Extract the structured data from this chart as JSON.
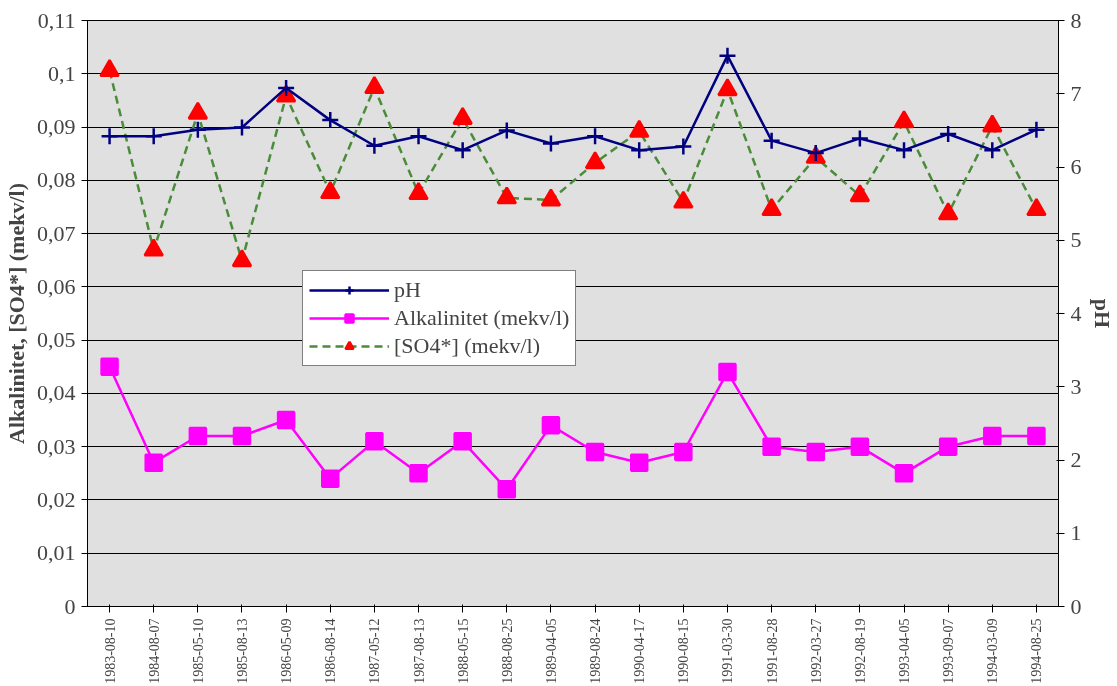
{
  "chart_data": {
    "type": "line",
    "ylabel": "Alkalinitet, [SO4*] (mekv/l)",
    "y2label": "pH",
    "categories": [
      "1983-08-10",
      "1984-08-07",
      "1985-05-10",
      "1985-08-13",
      "1986-05-09",
      "1986-08-14",
      "1987-05-12",
      "1987-08-13",
      "1988-05-15",
      "1988-08-25",
      "1989-04-05",
      "1989-08-24",
      "1990-04-17",
      "1990-08-15",
      "1991-03-30",
      "1991-08-28",
      "1992-03-27",
      "1992-08-19",
      "1993-04-05",
      "1993-09-07",
      "1994-03-09",
      "1994-08-25"
    ],
    "series": [
      {
        "name": "pH",
        "color": "#000080",
        "axis": "y2",
        "marker": "cross",
        "line_style": "solid",
        "values": [
          6.42,
          6.42,
          6.51,
          6.54,
          7.08,
          6.64,
          6.29,
          6.42,
          6.23,
          6.5,
          6.32,
          6.42,
          6.23,
          6.28,
          7.52,
          6.36,
          6.19,
          6.39,
          6.23,
          6.45,
          6.23,
          6.51
        ]
      },
      {
        "name": "Alkalinitet (mekv/l)",
        "color": "#ff00ff",
        "marker": "square",
        "line_style": "solid",
        "values": [
          0.045,
          0.027,
          0.032,
          0.032,
          0.035,
          0.024,
          0.031,
          0.025,
          0.031,
          0.022,
          0.034,
          0.029,
          0.027,
          0.029,
          0.044,
          0.03,
          0.029,
          0.03,
          0.025,
          0.03,
          0.032,
          0.032
        ]
      },
      {
        "name": "[SO4*] (mekv/l)",
        "color": "#4a8c3a",
        "colors": [
          "#ff0000",
          "#ff0000",
          "#ff0000",
          "#ff0000",
          "#ff0000",
          "#ff0000",
          "#ff0000",
          "#ff0000",
          "#ff0000",
          "#ff0000",
          "#ff0000",
          "#ff0000",
          "#ff0000",
          "#ff0000",
          "#ff0000",
          "#ff0000",
          "#ff0000",
          "#ff0000",
          "#ff0000",
          "#ff0000",
          "#ff0000",
          "#ff0000"
        ],
        "marker": "triangle",
        "line_style": "dashed",
        "values": [
          0.1006,
          0.0669,
          0.0926,
          0.0649,
          0.0958,
          0.0777,
          0.0974,
          0.0775,
          0.0916,
          0.0767,
          0.0763,
          0.0833,
          0.0892,
          0.0759,
          0.097,
          0.0745,
          0.0843,
          0.0771,
          0.091,
          0.0737,
          0.0902,
          0.0745
        ]
      }
    ],
    "ylim": [
      0,
      0.11
    ],
    "yticks": [
      0,
      {
        "value": 0.01,
        "label": "0,01"
      },
      {
        "value": 0.02,
        "label": "0,02"
      },
      {
        "value": 0.03,
        "label": "0,03"
      },
      {
        "value": 0.04,
        "label": "0,04"
      },
      {
        "value": 0.05,
        "label": "0,05"
      },
      {
        "value": 0.06,
        "label": "0,06"
      },
      {
        "value": 0.07,
        "label": "0,07"
      },
      {
        "value": 0.08,
        "label": "0,08"
      },
      {
        "value": 0.09,
        "label": "0,09"
      },
      {
        "value": 0.1,
        "label": "0,1"
      },
      {
        "value": 0.11,
        "label": "0,11"
      }
    ],
    "y2lim": [
      0,
      8
    ],
    "y2ticks": [
      0,
      1,
      2,
      3,
      4,
      5,
      6,
      7,
      8
    ],
    "grid": "y",
    "legend": "center"
  }
}
